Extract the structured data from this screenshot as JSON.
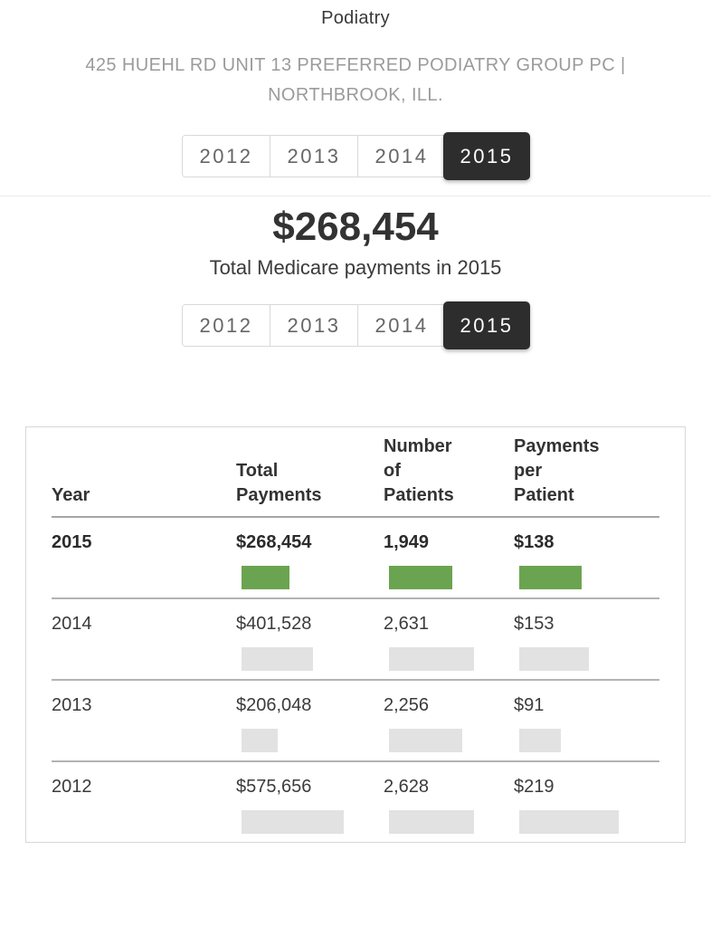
{
  "header": {
    "specialty": "Podiatry",
    "provider_line": "425 HUEHL RD UNIT 13 PREFERRED PODIATRY GROUP PC | NORTHBROOK, ILL."
  },
  "tabs": {
    "years": [
      "2012",
      "2013",
      "2014",
      "2015"
    ],
    "selected": "2015"
  },
  "summary": {
    "amount": "$268,454",
    "caption": "Total Medicare payments in 2015"
  },
  "table": {
    "headers": {
      "year": "Year",
      "total_payments": "Total\nPayments",
      "patients": "Number\nof\nPatients",
      "per_patient": "Payments\nper\nPatient"
    }
  },
  "colors": {
    "bar_green": "#6BA450",
    "bar_gray": "#E2E2E2",
    "tab_selected_bg": "#2D2D2D"
  },
  "chart_data": {
    "type": "bar",
    "title": "Total Medicare payments in 2015",
    "columns": [
      "Year",
      "Total Payments",
      "Number of Patients",
      "Payments per Patient"
    ],
    "legend_position": "none",
    "rows": [
      {
        "year": "2015",
        "total_payments": "$268,454",
        "total_payments_value": 268454,
        "patients": "1,949",
        "patients_value": 1949,
        "per_patient": "$138",
        "per_patient_value": 138,
        "highlight": true
      },
      {
        "year": "2014",
        "total_payments": "$401,528",
        "total_payments_value": 401528,
        "patients": "2,631",
        "patients_value": 2631,
        "per_patient": "$153",
        "per_patient_value": 153,
        "highlight": false
      },
      {
        "year": "2013",
        "total_payments": "$206,048",
        "total_payments_value": 206048,
        "patients": "2,256",
        "patients_value": 2256,
        "per_patient": "$91",
        "per_patient_value": 91,
        "highlight": false
      },
      {
        "year": "2012",
        "total_payments": "$575,656",
        "total_payments_value": 575656,
        "patients": "2,628",
        "patients_value": 2628,
        "per_patient": "$219",
        "per_patient_value": 219,
        "highlight": false
      }
    ]
  }
}
